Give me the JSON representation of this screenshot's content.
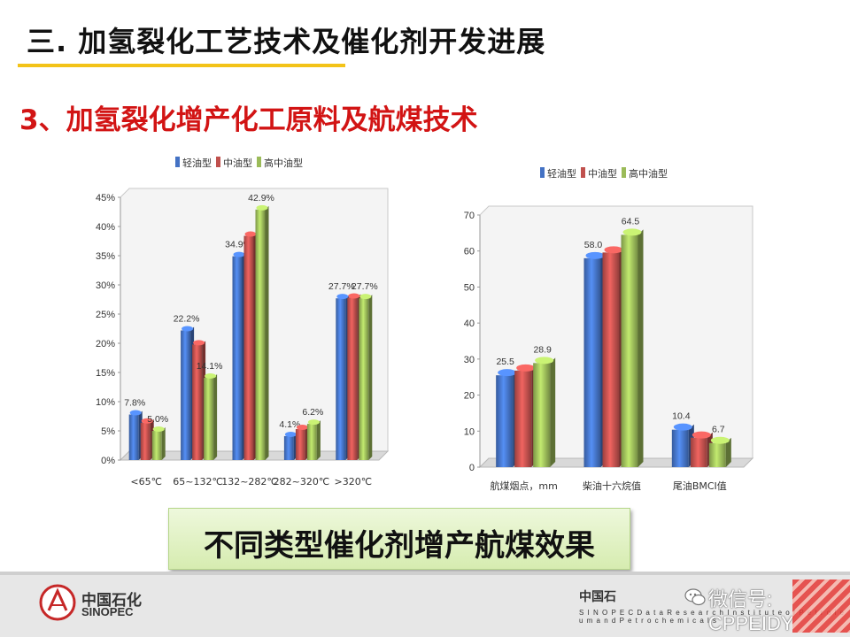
{
  "slide": {
    "title": "三. 加氢裂化工艺技术及催化剂开发进展",
    "subtitle": "3、加氢裂化增产化工原料及航煤技术",
    "caption": "不同类型催化剂增产航煤效果"
  },
  "footer": {
    "org_cn": "中国石化",
    "org_en": "SINOPEC",
    "institute_cn": "中国石",
    "institute_en": "S I N O P E C   D a t a   R e s e a r c h   I n s t i t u t e   o f   P e t r o l e u m   a n d   P e t r o c h e m i c a l s",
    "watermark": "微信号: CPPEIDY",
    "watermark_icon": "wechat-icon"
  },
  "colors": {
    "light_oil": "#4472c4",
    "mid_oil": "#c0504d",
    "high_mid_oil": "#9bbb59",
    "title_underline": "#f3c318",
    "subtitle": "#d21414"
  },
  "chart_data": [
    {
      "type": "bar",
      "categories": [
        "<65℃",
        "65~132℃",
        "132~282℃",
        "282~320℃",
        ">320℃"
      ],
      "series": [
        {
          "name": "轻油型",
          "values": [
            7.8,
            22.2,
            34.9,
            4.1,
            27.7
          ]
        },
        {
          "name": "中油型",
          "values": [
            6.4,
            19.8,
            38.4,
            5.3,
            27.8
          ]
        },
        {
          "name": "高中油型",
          "values": [
            5.0,
            14.1,
            42.9,
            6.2,
            27.7
          ]
        }
      ],
      "data_labels": [
        [
          "7.8%",
          "22.2%",
          "34.9%",
          "4.1%",
          "27.7%"
        ],
        [
          "",
          "",
          "",
          "",
          ""
        ],
        [
          "5.0%",
          "14.1%",
          "42.9%",
          "6.2%",
          "27.7%"
        ]
      ],
      "yticks": [
        "0%",
        "5%",
        "10%",
        "15%",
        "20%",
        "25%",
        "30%",
        "35%",
        "40%",
        "45%"
      ],
      "ylim": [
        0,
        45
      ],
      "legend": "top",
      "grid": false
    },
    {
      "type": "bar",
      "categories": [
        "航煤烟点，mm",
        "柴油十六烷值",
        "尾油BMCI值"
      ],
      "series": [
        {
          "name": "轻油型",
          "values": [
            25.5,
            58.0,
            10.4
          ]
        },
        {
          "name": "中油型",
          "values": [
            26.8,
            59.6,
            8.2
          ]
        },
        {
          "name": "高中油型",
          "values": [
            28.9,
            64.5,
            6.7
          ]
        }
      ],
      "data_labels": [
        [
          "25.5",
          "58.0",
          "10.4"
        ],
        [
          "",
          "",
          ""
        ],
        [
          "28.9",
          "64.5",
          "6.7"
        ]
      ],
      "yticks": [
        "0",
        "10",
        "20",
        "30",
        "40",
        "50",
        "60",
        "70"
      ],
      "ylim": [
        0,
        70
      ],
      "legend": "top",
      "grid": false
    }
  ]
}
